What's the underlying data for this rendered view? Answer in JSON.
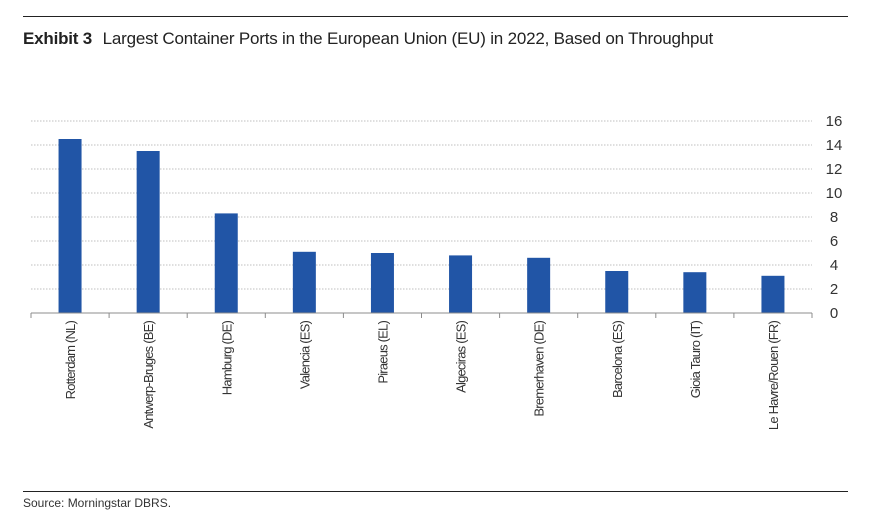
{
  "header": {
    "exhibit_label": "Exhibit 3",
    "title": "Largest Container Ports in the European Union (EU) in 2022, Based on Throughput"
  },
  "footer": {
    "source": "Source: Morningstar DBRS."
  },
  "colors": {
    "bar": "#2155a6",
    "grid": "#bfbfbf",
    "axis": "#8c8c8c"
  },
  "chart_data": {
    "type": "bar",
    "title": "Largest Container Ports in the European Union (EU) in 2022, Based on Throughput",
    "xlabel": "",
    "ylabel": "",
    "categories": [
      "Rotterdam (NL)",
      "Antwerp-Bruges (BE)",
      "Hamburg (DE)",
      "Valencia (ES)",
      "Piraeus (EL)",
      "Algeciras (ES)",
      "Bremerhaven (DE)",
      "Barcelona (ES)",
      "Gioia Tauro (IT)",
      "Le Havre/Rouen (FR)"
    ],
    "values": [
      14.5,
      13.5,
      8.3,
      5.1,
      5.0,
      4.8,
      4.6,
      3.5,
      3.4,
      3.1
    ],
    "ylim": [
      0,
      16
    ],
    "yticks": [
      0,
      2,
      4,
      6,
      8,
      10,
      12,
      14,
      16
    ],
    "y_axis_side": "right",
    "grid": true,
    "legend": "none"
  }
}
